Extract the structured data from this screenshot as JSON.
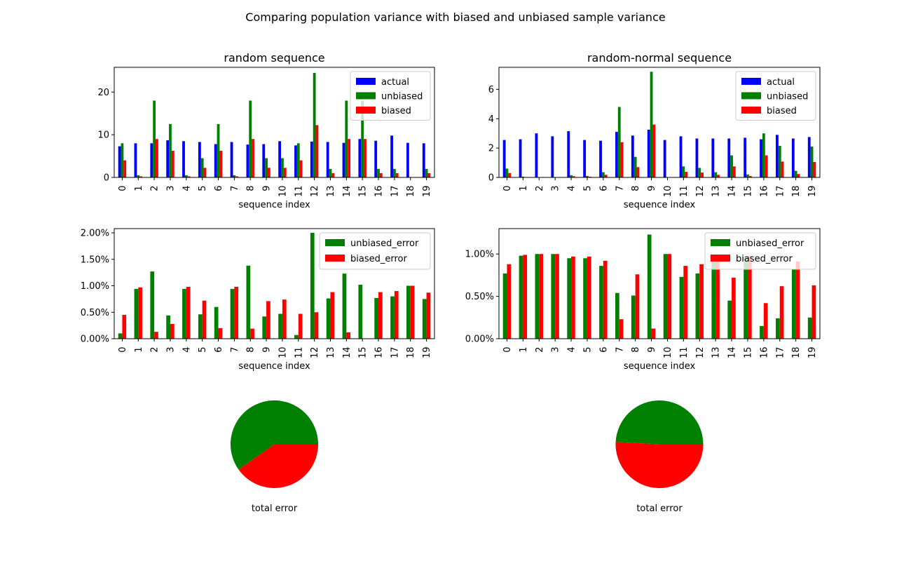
{
  "figure": {
    "suptitle": "Comparing population variance with biased and unbiased sample variance"
  },
  "colors": {
    "actual": "#0000ff",
    "unbiased": "#008000",
    "biased": "#ff0000"
  },
  "chart_data": [
    {
      "id": "random_variance",
      "type": "bar",
      "title": "random sequence",
      "xlabel": "sequence index",
      "ylabel": "",
      "ylim": [
        0,
        25.8
      ],
      "yticks": [
        0,
        10,
        20
      ],
      "ytick_labels": [
        "0",
        "10",
        "20"
      ],
      "legend": "top-right",
      "categories": [
        "0",
        "1",
        "2",
        "3",
        "4",
        "5",
        "6",
        "7",
        "8",
        "9",
        "10",
        "11",
        "12",
        "13",
        "14",
        "15",
        "16",
        "17",
        "18",
        "19"
      ],
      "series": [
        {
          "name": "actual",
          "color": "#0000ff",
          "values": [
            7.3,
            8.0,
            8.0,
            8.7,
            8.5,
            8.3,
            7.8,
            8.3,
            7.7,
            7.8,
            8.5,
            7.5,
            8.4,
            8.3,
            8.1,
            9.0,
            8.6,
            9.8,
            8.1,
            8.0
          ]
        },
        {
          "name": "unbiased",
          "color": "#008000",
          "values": [
            8.0,
            0.5,
            18.0,
            12.5,
            0.5,
            4.5,
            12.5,
            0.5,
            18.0,
            4.5,
            4.5,
            8.0,
            24.5,
            2.0,
            18.0,
            18.0,
            2.0,
            2.0,
            0.0,
            2.0
          ]
        },
        {
          "name": "biased",
          "color": "#ff0000",
          "values": [
            4.0,
            0.25,
            9.0,
            6.25,
            0.25,
            2.25,
            6.25,
            0.25,
            9.0,
            2.25,
            2.25,
            4.0,
            12.25,
            1.0,
            9.0,
            9.0,
            1.0,
            1.0,
            0.0,
            1.0
          ]
        }
      ]
    },
    {
      "id": "normal_variance",
      "type": "bar",
      "title": "random-normal sequence",
      "xlabel": "sequence index",
      "ylabel": "",
      "ylim": [
        0,
        7.5
      ],
      "yticks": [
        0,
        2,
        4,
        6
      ],
      "ytick_labels": [
        "0",
        "2",
        "4",
        "6"
      ],
      "legend": "top-right",
      "categories": [
        "0",
        "1",
        "2",
        "3",
        "4",
        "5",
        "6",
        "7",
        "8",
        "9",
        "10",
        "11",
        "12",
        "13",
        "14",
        "15",
        "16",
        "17",
        "18",
        "19"
      ],
      "series": [
        {
          "name": "actual",
          "color": "#0000ff",
          "values": [
            2.55,
            2.6,
            3.0,
            2.8,
            3.15,
            2.55,
            2.5,
            3.1,
            2.85,
            3.25,
            2.55,
            2.8,
            2.65,
            2.65,
            2.65,
            2.7,
            2.6,
            2.9,
            2.65,
            2.75
          ]
        },
        {
          "name": "unbiased",
          "color": "#008000",
          "values": [
            0.6,
            0.05,
            0.0,
            0.0,
            0.15,
            0.1,
            0.35,
            4.8,
            1.4,
            7.2,
            0.0,
            0.75,
            0.65,
            0.35,
            1.5,
            0.2,
            3.0,
            2.15,
            0.45,
            2.1
          ]
        },
        {
          "name": "biased",
          "color": "#ff0000",
          "values": [
            0.3,
            0.02,
            0.0,
            0.0,
            0.08,
            0.05,
            0.18,
            2.4,
            0.7,
            3.6,
            0.0,
            0.38,
            0.33,
            0.18,
            0.75,
            0.1,
            1.5,
            1.08,
            0.23,
            1.05
          ]
        }
      ]
    },
    {
      "id": "random_error",
      "type": "bar",
      "title": "",
      "xlabel": "sequence index",
      "ylabel": "",
      "ylim": [
        0,
        2.08
      ],
      "value_unit": "percent",
      "yticks": [
        0,
        0.5,
        1.0,
        1.5,
        2.0
      ],
      "ytick_labels": [
        "0.00%",
        "0.50%",
        "1.00%",
        "1.50%",
        "2.00%"
      ],
      "legend": "top-right",
      "categories": [
        "0",
        "1",
        "2",
        "3",
        "4",
        "5",
        "6",
        "7",
        "8",
        "9",
        "10",
        "11",
        "12",
        "13",
        "14",
        "15",
        "16",
        "17",
        "18",
        "19"
      ],
      "series": [
        {
          "name": "unbiased_error",
          "color": "#008000",
          "values": [
            0.1,
            0.94,
            1.27,
            0.44,
            0.94,
            0.46,
            0.6,
            0.94,
            1.38,
            0.42,
            0.47,
            0.07,
            2.0,
            0.76,
            1.23,
            1.02,
            0.77,
            0.8,
            1.0,
            0.75
          ]
        },
        {
          "name": "biased_error",
          "color": "#ff0000",
          "values": [
            0.45,
            0.97,
            0.13,
            0.28,
            0.98,
            0.72,
            0.2,
            0.98,
            0.19,
            0.71,
            0.74,
            0.47,
            0.5,
            0.88,
            0.12,
            0.0,
            0.88,
            0.9,
            1.0,
            0.87
          ]
        }
      ]
    },
    {
      "id": "normal_error",
      "type": "bar",
      "title": "",
      "xlabel": "sequence index",
      "ylabel": "",
      "ylim": [
        0,
        1.3
      ],
      "value_unit": "percent",
      "yticks": [
        0,
        0.5,
        1.0
      ],
      "ytick_labels": [
        "0.00%",
        "0.50%",
        "1.00%"
      ],
      "legend": "top-right",
      "categories": [
        "0",
        "1",
        "2",
        "3",
        "4",
        "5",
        "6",
        "7",
        "8",
        "9",
        "10",
        "11",
        "12",
        "13",
        "14",
        "15",
        "16",
        "17",
        "18",
        "19"
      ],
      "series": [
        {
          "name": "unbiased_error",
          "color": "#008000",
          "values": [
            0.77,
            0.98,
            1.0,
            1.0,
            0.95,
            0.95,
            0.86,
            0.54,
            0.51,
            1.23,
            1.0,
            0.73,
            0.77,
            0.94,
            0.45,
            0.97,
            0.15,
            0.24,
            0.82,
            0.25
          ]
        },
        {
          "name": "biased_error",
          "color": "#ff0000",
          "values": [
            0.88,
            0.99,
            1.0,
            1.0,
            0.97,
            0.97,
            0.92,
            0.23,
            0.76,
            0.12,
            1.0,
            0.86,
            0.88,
            0.97,
            0.72,
            0.98,
            0.42,
            0.62,
            0.91,
            0.63
          ]
        }
      ]
    },
    {
      "id": "random_pie",
      "type": "pie",
      "title": "",
      "xlabel": "total error",
      "slices": [
        {
          "name": "unbiased",
          "value": 0.598,
          "color": "#008000"
        },
        {
          "name": "biased",
          "value": 0.402,
          "color": "#ff0000"
        }
      ]
    },
    {
      "id": "normal_pie",
      "type": "pie",
      "title": "",
      "xlabel": "total error",
      "slices": [
        {
          "name": "unbiased",
          "value": 0.492,
          "color": "#008000"
        },
        {
          "name": "biased",
          "value": 0.508,
          "color": "#ff0000"
        }
      ]
    }
  ]
}
